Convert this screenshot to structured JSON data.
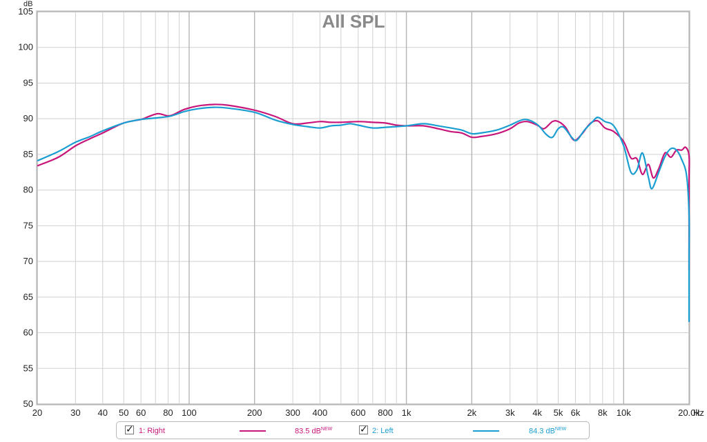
{
  "chart_data": {
    "type": "line",
    "title": "All SPL",
    "ylabel": "dB",
    "xlabel": "Hz",
    "x_scale": "log",
    "xlim": [
      20,
      20000
    ],
    "ylim": [
      50,
      105
    ],
    "grid": true,
    "x_ticks": [
      {
        "v": 20,
        "label": "20",
        "major": true
      },
      {
        "v": 30,
        "label": "30",
        "major": false
      },
      {
        "v": 40,
        "label": "40",
        "major": false
      },
      {
        "v": 50,
        "label": "50",
        "major": false
      },
      {
        "v": 60,
        "label": "60",
        "major": false
      },
      {
        "v": 70,
        "label": "",
        "major": false
      },
      {
        "v": 80,
        "label": "80",
        "major": false
      },
      {
        "v": 90,
        "label": "",
        "major": false
      },
      {
        "v": 100,
        "label": "100",
        "major": true
      },
      {
        "v": 200,
        "label": "200",
        "major": true
      },
      {
        "v": 300,
        "label": "300",
        "major": false
      },
      {
        "v": 400,
        "label": "400",
        "major": false
      },
      {
        "v": 500,
        "label": "",
        "major": false
      },
      {
        "v": 600,
        "label": "600",
        "major": false
      },
      {
        "v": 700,
        "label": "",
        "major": false
      },
      {
        "v": 800,
        "label": "800",
        "major": false
      },
      {
        "v": 900,
        "label": "",
        "major": false
      },
      {
        "v": 1000,
        "label": "1k",
        "major": true
      },
      {
        "v": 2000,
        "label": "2k",
        "major": true
      },
      {
        "v": 3000,
        "label": "3k",
        "major": false
      },
      {
        "v": 4000,
        "label": "4k",
        "major": false
      },
      {
        "v": 5000,
        "label": "5k",
        "major": false
      },
      {
        "v": 6000,
        "label": "6k",
        "major": false
      },
      {
        "v": 7000,
        "label": "",
        "major": false
      },
      {
        "v": 8000,
        "label": "8k",
        "major": false
      },
      {
        "v": 9000,
        "label": "",
        "major": false
      },
      {
        "v": 10000,
        "label": "10k",
        "major": true
      },
      {
        "v": 20000,
        "label": "20.0k",
        "major": true
      }
    ],
    "y_ticks": [
      50,
      55,
      60,
      65,
      70,
      75,
      80,
      85,
      90,
      95,
      100,
      105
    ],
    "series": [
      {
        "name": "1: Right",
        "color": "#c8157a",
        "legend_value": "83.5 dB",
        "points": [
          [
            20,
            83.4
          ],
          [
            25,
            84.6
          ],
          [
            30,
            86.2
          ],
          [
            35,
            87.2
          ],
          [
            40,
            88.0
          ],
          [
            50,
            89.4
          ],
          [
            60,
            89.9
          ],
          [
            65,
            90.3
          ],
          [
            72,
            90.7
          ],
          [
            80,
            90.4
          ],
          [
            85,
            90.6
          ],
          [
            95,
            91.3
          ],
          [
            110,
            91.8
          ],
          [
            130,
            92.0
          ],
          [
            150,
            91.9
          ],
          [
            200,
            91.2
          ],
          [
            250,
            90.3
          ],
          [
            300,
            89.3
          ],
          [
            350,
            89.4
          ],
          [
            400,
            89.6
          ],
          [
            450,
            89.5
          ],
          [
            500,
            89.5
          ],
          [
            600,
            89.6
          ],
          [
            700,
            89.5
          ],
          [
            800,
            89.4
          ],
          [
            900,
            89.1
          ],
          [
            1000,
            89.0
          ],
          [
            1200,
            89.0
          ],
          [
            1400,
            88.6
          ],
          [
            1600,
            88.2
          ],
          [
            1800,
            88.0
          ],
          [
            2000,
            87.4
          ],
          [
            2200,
            87.5
          ],
          [
            2600,
            87.9
          ],
          [
            3000,
            88.6
          ],
          [
            3300,
            89.4
          ],
          [
            3600,
            89.6
          ],
          [
            4000,
            89.1
          ],
          [
            4300,
            88.6
          ],
          [
            4700,
            89.6
          ],
          [
            5000,
            89.6
          ],
          [
            5400,
            88.8
          ],
          [
            5900,
            87.0
          ],
          [
            6400,
            87.8
          ],
          [
            7000,
            89.3
          ],
          [
            7600,
            89.7
          ],
          [
            8200,
            88.7
          ],
          [
            9000,
            88.2
          ],
          [
            10000,
            86.8
          ],
          [
            10800,
            84.5
          ],
          [
            11500,
            84.4
          ],
          [
            12200,
            82.2
          ],
          [
            13000,
            83.6
          ],
          [
            13700,
            81.7
          ],
          [
            14500,
            83.0
          ],
          [
            15500,
            85.2
          ],
          [
            16500,
            84.6
          ],
          [
            17500,
            85.6
          ],
          [
            18500,
            85.6
          ],
          [
            19300,
            86.0
          ],
          [
            20200,
            84.8
          ],
          [
            21000,
            81.0
          ],
          [
            22000,
            68.8
          ]
        ]
      },
      {
        "name": "2: Left",
        "color": "#1a9ed1",
        "legend_value": "84.3 dB",
        "points": [
          [
            20,
            84.1
          ],
          [
            25,
            85.4
          ],
          [
            30,
            86.7
          ],
          [
            35,
            87.5
          ],
          [
            40,
            88.3
          ],
          [
            50,
            89.4
          ],
          [
            60,
            89.9
          ],
          [
            70,
            90.1
          ],
          [
            80,
            90.3
          ],
          [
            85,
            90.5
          ],
          [
            95,
            91.0
          ],
          [
            110,
            91.4
          ],
          [
            130,
            91.6
          ],
          [
            150,
            91.5
          ],
          [
            200,
            90.9
          ],
          [
            250,
            89.8
          ],
          [
            300,
            89.2
          ],
          [
            350,
            88.9
          ],
          [
            400,
            88.7
          ],
          [
            450,
            89.0
          ],
          [
            500,
            89.1
          ],
          [
            550,
            89.3
          ],
          [
            600,
            89.1
          ],
          [
            700,
            88.7
          ],
          [
            800,
            88.8
          ],
          [
            900,
            88.9
          ],
          [
            1000,
            89.0
          ],
          [
            1200,
            89.3
          ],
          [
            1400,
            89.0
          ],
          [
            1600,
            88.7
          ],
          [
            1800,
            88.4
          ],
          [
            2000,
            87.9
          ],
          [
            2200,
            88.0
          ],
          [
            2600,
            88.4
          ],
          [
            3000,
            89.1
          ],
          [
            3500,
            89.9
          ],
          [
            4000,
            89.2
          ],
          [
            4400,
            87.8
          ],
          [
            4700,
            87.4
          ],
          [
            5000,
            88.6
          ],
          [
            5300,
            88.8
          ],
          [
            5800,
            87.3
          ],
          [
            6100,
            87.0
          ],
          [
            6600,
            88.4
          ],
          [
            7200,
            89.6
          ],
          [
            7600,
            90.2
          ],
          [
            8200,
            89.6
          ],
          [
            9000,
            89.0
          ],
          [
            10000,
            86.2
          ],
          [
            10800,
            82.5
          ],
          [
            11500,
            82.8
          ],
          [
            12200,
            85.2
          ],
          [
            13000,
            81.8
          ],
          [
            13500,
            80.2
          ],
          [
            14500,
            82.5
          ],
          [
            15500,
            84.7
          ],
          [
            16500,
            85.8
          ],
          [
            17500,
            85.6
          ],
          [
            18500,
            84.3
          ],
          [
            19500,
            82.0
          ],
          [
            20500,
            76.5
          ],
          [
            21500,
            70.0
          ],
          [
            22000,
            61.5
          ]
        ]
      }
    ]
  },
  "legend": {
    "new_label": "NEW"
  }
}
